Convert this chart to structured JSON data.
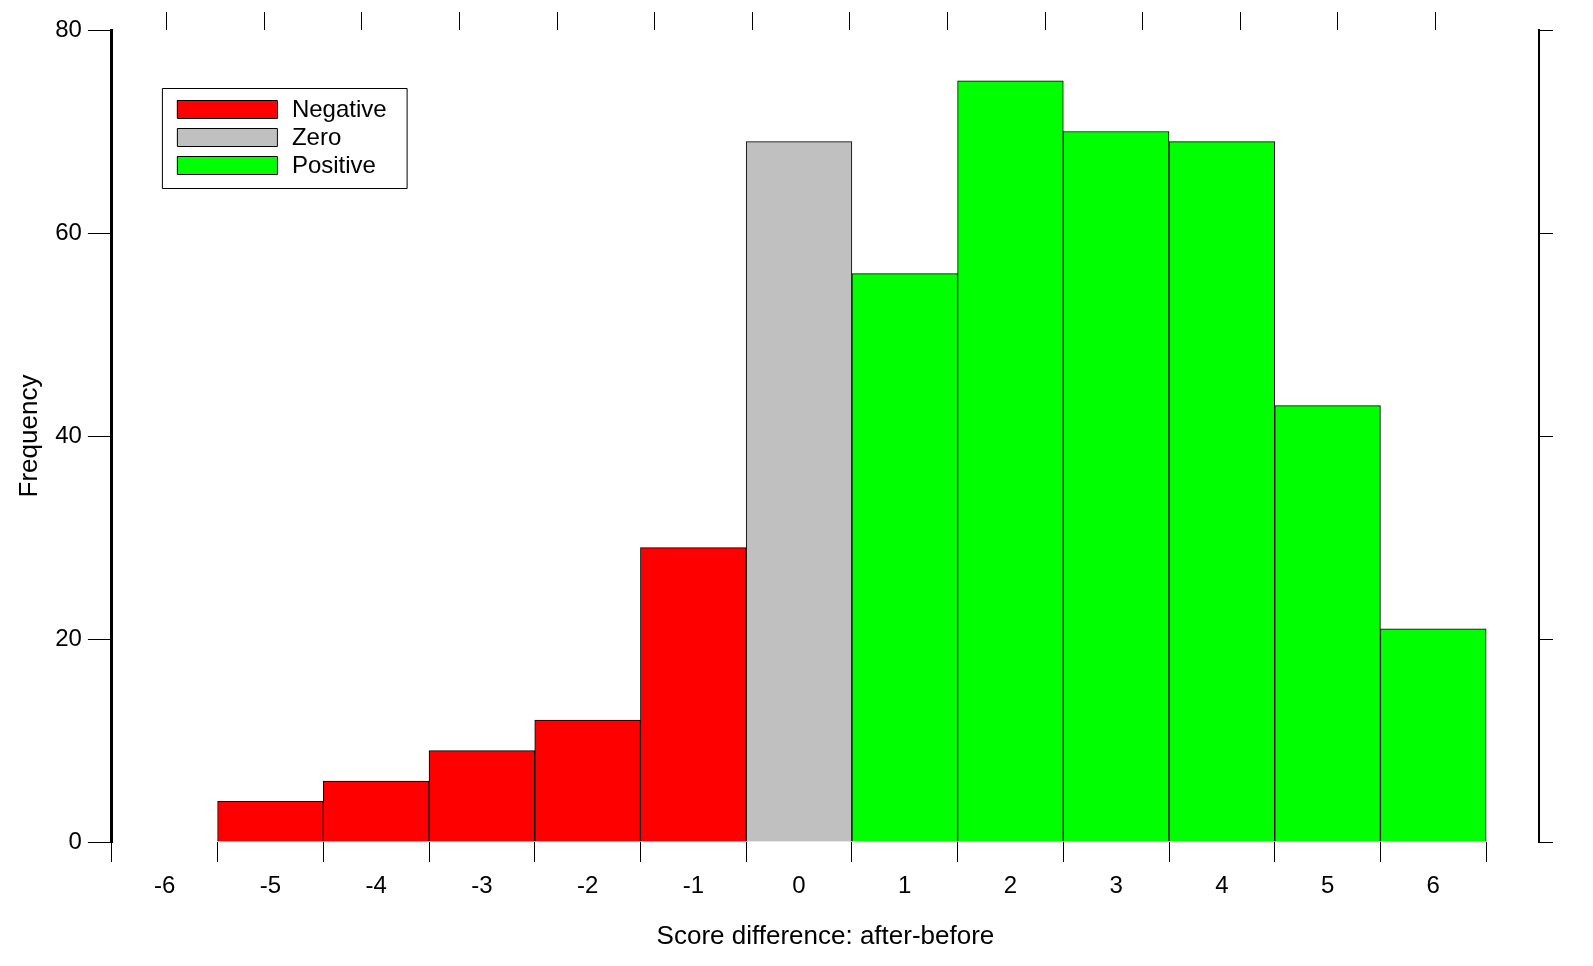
{
  "chart_data": {
    "type": "histogram",
    "xlabel": "Score difference: after-before",
    "ylabel": "Frequency",
    "bins": [
      -6.5,
      -5.5,
      -4.5,
      -3.5,
      -2.5,
      -1.5,
      -0.5,
      0.5,
      1.5,
      2.5,
      3.5,
      4.5,
      5.5,
      6.5
    ],
    "series": [
      {
        "name": "Negative",
        "color": "#ff0000",
        "values": [
          0,
          4,
          6,
          9,
          12,
          29,
          null,
          null,
          null,
          null,
          null,
          null,
          null
        ]
      },
      {
        "name": "Zero",
        "color": "#c0c0c0",
        "values": [
          null,
          null,
          null,
          null,
          null,
          null,
          69,
          null,
          null,
          null,
          null,
          null,
          null
        ]
      },
      {
        "name": "Positive",
        "color": "#00ff00",
        "values": [
          null,
          null,
          null,
          null,
          null,
          null,
          null,
          56,
          75,
          70,
          69,
          43,
          21
        ]
      }
    ],
    "xlim": [
      -6.5,
      7
    ],
    "xticks": [
      -6,
      -5,
      -4,
      -3,
      -2,
      -1,
      0,
      1,
      2,
      3,
      4,
      5,
      6
    ],
    "ylim": [
      0,
      80
    ],
    "yticks": [
      0,
      20,
      40,
      60,
      80
    ],
    "grid": false,
    "legend": "top left"
  }
}
